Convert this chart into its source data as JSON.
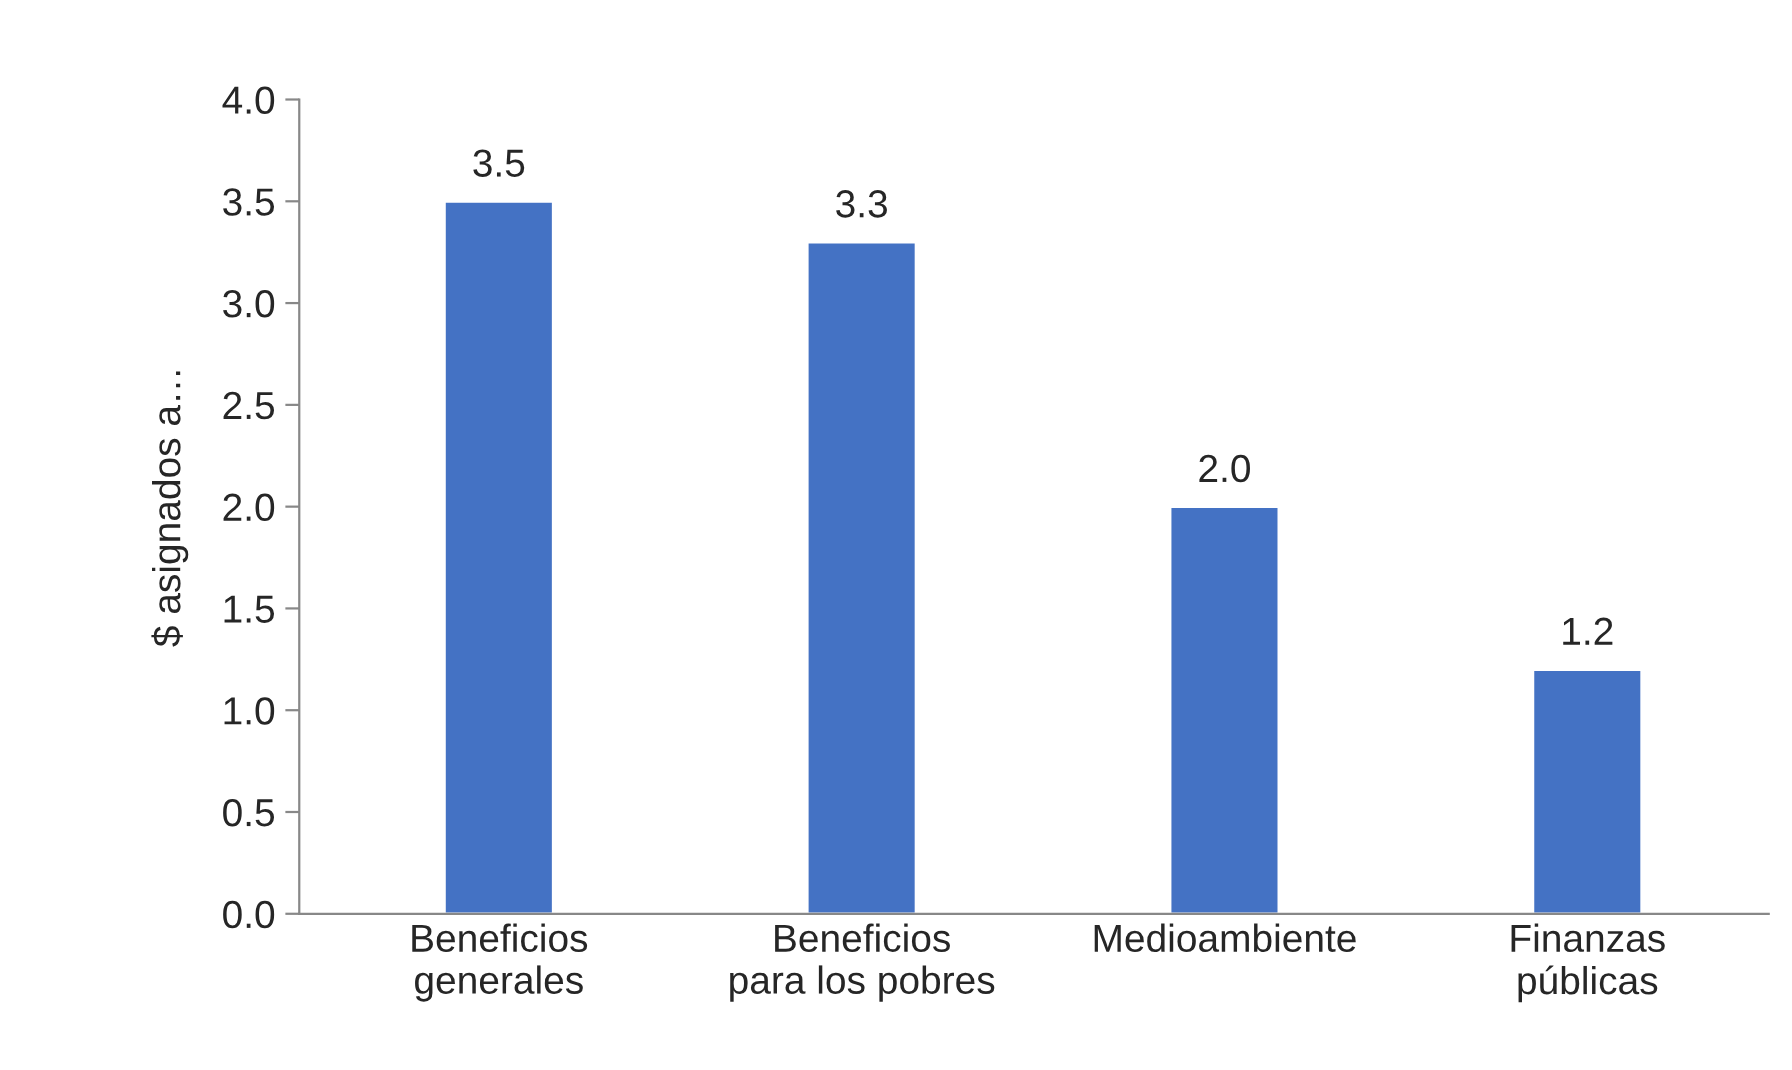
{
  "chart_data": {
    "type": "bar",
    "ylabel": "$ asignados a…",
    "categories": [
      "Beneficios\ngenerales",
      "Beneficios\npara los pobres",
      "Medioambiente",
      "Finanzas\npúblicas"
    ],
    "values": [
      3.5,
      3.3,
      2.0,
      1.2
    ],
    "color": "#4472c4",
    "ylim": [
      0,
      4
    ],
    "yticks": [
      {
        "value": 0,
        "label": "0.0"
      },
      {
        "value": 0.5,
        "label": "0.5"
      },
      {
        "value": 1,
        "label": "1.0"
      },
      {
        "value": 1.5,
        "label": "1.5"
      },
      {
        "value": 2,
        "label": "2.0"
      },
      {
        "value": 2.5,
        "label": "2.5"
      },
      {
        "value": 3,
        "label": "3.0"
      },
      {
        "value": 3.5,
        "label": "3.5"
      },
      {
        "value": 4,
        "label": "4.0"
      }
    ],
    "value_labels": [
      "3.5",
      "3.3",
      "2.0",
      "1.2"
    ],
    "grid": false,
    "legend": false
  }
}
